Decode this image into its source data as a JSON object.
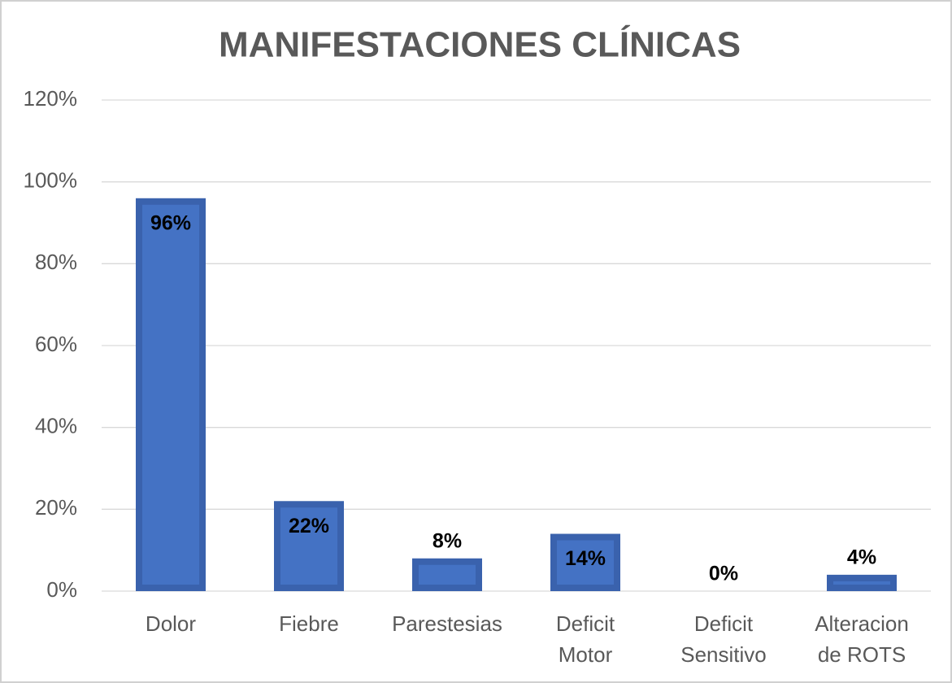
{
  "chart_data": {
    "type": "bar",
    "title": "MANIFESTACIONES CLÍNICAS",
    "categories": [
      "Dolor",
      "Fiebre",
      "Parestesias",
      "Deficit Motor",
      "Deficit Sensitivo",
      "Alteracion de ROTS"
    ],
    "values": [
      96,
      22,
      8,
      14,
      0,
      4
    ],
    "value_labels": [
      "96%",
      "22%",
      "8%",
      "14%",
      "0%",
      "4%"
    ],
    "color": "#4472c4",
    "ylim": [
      0,
      120
    ],
    "yticks": [
      {
        "value": 0,
        "label": "0%"
      },
      {
        "value": 20,
        "label": "20%"
      },
      {
        "value": 40,
        "label": "40%"
      },
      {
        "value": 60,
        "label": "60%"
      },
      {
        "value": 80,
        "label": "80%"
      },
      {
        "value": 100,
        "label": "100%"
      },
      {
        "value": 120,
        "label": "120%"
      }
    ],
    "grid": true
  }
}
